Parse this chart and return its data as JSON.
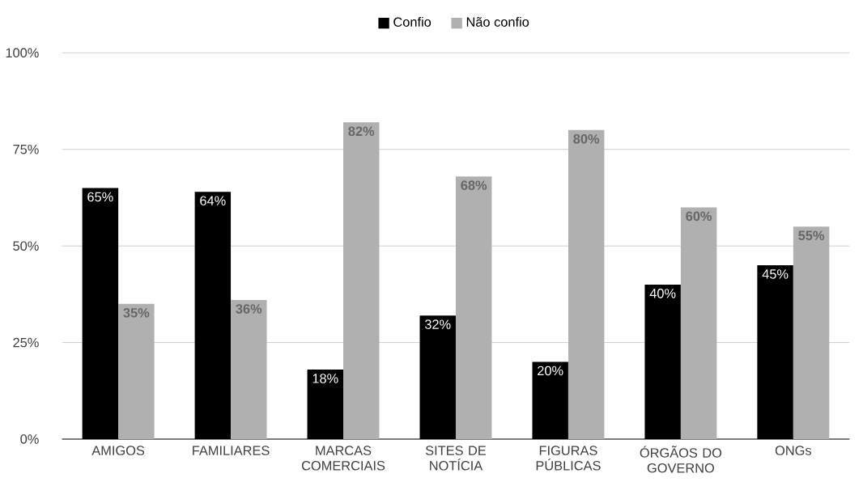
{
  "chart_data": {
    "type": "bar",
    "categories": [
      "AMIGOS",
      "FAMILIARES",
      "MARCAS COMERCIAIS",
      "SITES DE NOTÍCIA",
      "FIGURAS PÚBLICAS",
      "ÓRGÃOS DO GOVERNO",
      "ONGs"
    ],
    "series": [
      {
        "name": "Confio",
        "color": "#000000",
        "values": [
          65,
          64,
          18,
          32,
          20,
          40,
          45
        ],
        "value_labels": [
          "65%",
          "64%",
          "18%",
          "32%",
          "20%",
          "40%",
          "45%"
        ]
      },
      {
        "name": "Não confio",
        "color": "#b0b0b0",
        "values": [
          35,
          36,
          82,
          68,
          80,
          60,
          55
        ],
        "value_labels": [
          "35%",
          "36%",
          "82%",
          "68%",
          "80%",
          "60%",
          "55%"
        ]
      }
    ],
    "ylim": [
      0,
      100
    ],
    "yticks": [
      {
        "value": 0,
        "label": "0%"
      },
      {
        "value": 25,
        "label": "25%"
      },
      {
        "value": 50,
        "label": "50%"
      },
      {
        "value": 75,
        "label": "75%"
      },
      {
        "value": 100,
        "label": "100%"
      }
    ],
    "grid": "y",
    "legend": "top"
  }
}
